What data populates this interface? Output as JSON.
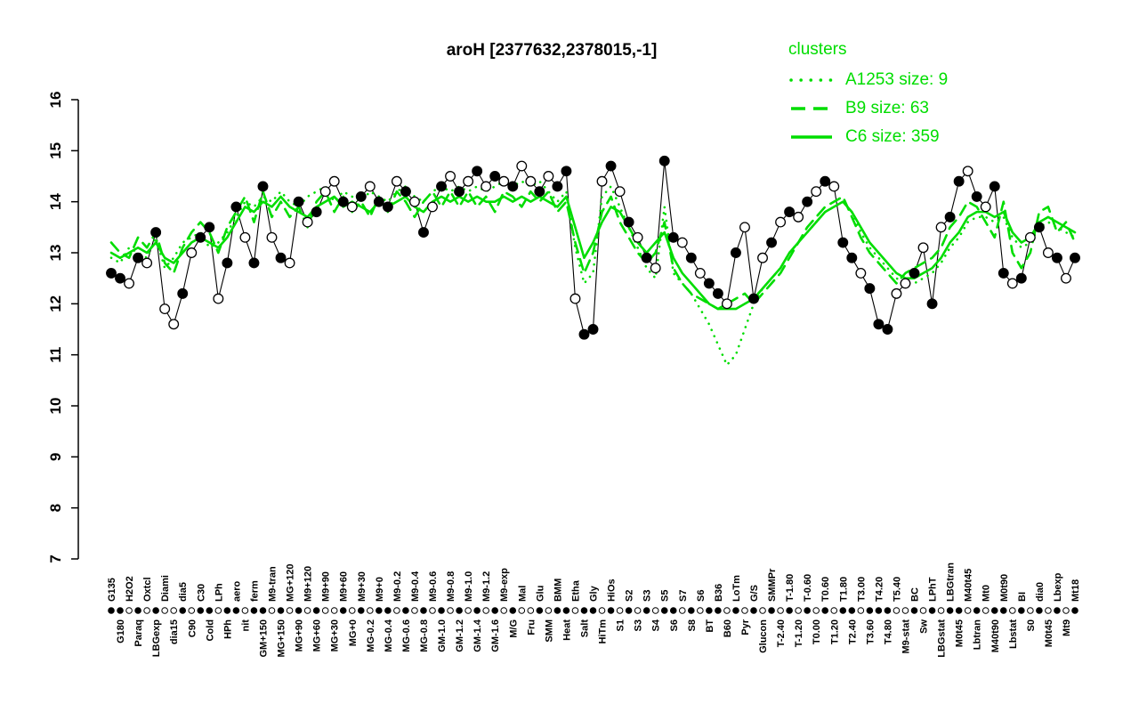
{
  "chart_data": {
    "type": "line",
    "title": "aroH [2377632,2378015,-1]",
    "legend_title": "clusters",
    "legend_position": "top-right",
    "grid": false,
    "cluster_color": "#00dd00",
    "point_color": "#000000",
    "open_point_fill": "#ffffff",
    "ylim": [
      7,
      16
    ],
    "yticks": [
      7,
      8,
      9,
      10,
      11,
      12,
      13,
      14,
      15,
      16
    ],
    "categories": [
      "G135",
      "G180",
      "H2O2",
      "Paraq",
      "Oxtcl",
      "LBGexp",
      "Diami",
      "dia15",
      "dia5",
      "C90",
      "C30",
      "Cold",
      "LPh",
      "HPh",
      "aero",
      "nit",
      "ferm",
      "GM+150",
      "M9-tran",
      "MG+150",
      "MG+120",
      "MG+90",
      "M9+120",
      "MG+60",
      "M9+90",
      "MG+30",
      "M9+60",
      "MG+0",
      "M9+30",
      "MG-0.2",
      "M9+0",
      "MG-0.4",
      "M9-0.2",
      "MG-0.6",
      "M9-0.4",
      "MG-0.8",
      "M9-0.6",
      "GM-1.0",
      "M9-0.8",
      "GM-1.2",
      "M9-1.0",
      "GM-1.4",
      "M9-1.2",
      "GM-1.6",
      "M9-exp",
      "M/G",
      "Mal",
      "Fru",
      "Glu",
      "SMM",
      "BMM",
      "Heat",
      "Etha",
      "Salt",
      "Gly",
      "HiTm",
      "HiOs",
      "S1",
      "S2",
      "S3",
      "S3",
      "S4",
      "S5",
      "S6",
      "S7",
      "S8",
      "S6",
      "BT",
      "B36",
      "B60",
      "LoTm",
      "Pyr",
      "G/S",
      "Glucon",
      "SMMPr",
      "T-2.40",
      "T-1.80",
      "T-1.20",
      "T-0.60",
      "T0.00",
      "T0.60",
      "T1.20",
      "T1.80",
      "T2.40",
      "T3.00",
      "T3.60",
      "T4.20",
      "T4.80",
      "T5.40",
      "M9-stat",
      "BC",
      "Sw",
      "LPhT",
      "LBGstat",
      "LBGtran",
      "M0t45",
      "M40t45",
      "Lbtran",
      "Mt0",
      "M40t90",
      "M0t90",
      "Lbstat",
      "BI",
      "S0",
      "dia0",
      "M0t45",
      "Lbexp",
      "Mt9",
      "Mt18"
    ],
    "gene_profile": {
      "values": [
        12.6,
        12.5,
        12.4,
        12.9,
        12.8,
        13.4,
        11.9,
        11.6,
        12.2,
        13.0,
        13.3,
        13.5,
        12.1,
        12.8,
        13.9,
        13.3,
        12.8,
        14.3,
        13.3,
        12.9,
        12.8,
        14.0,
        13.6,
        13.8,
        14.2,
        14.4,
        14.0,
        13.9,
        14.1,
        14.3,
        14.0,
        13.9,
        14.4,
        14.2,
        14.0,
        13.4,
        13.9,
        14.3,
        14.5,
        14.2,
        14.4,
        14.6,
        14.3,
        14.5,
        14.4,
        14.3,
        14.7,
        14.4,
        14.2,
        14.5,
        14.3,
        14.6,
        12.1,
        11.4,
        11.5,
        14.4,
        14.7,
        14.2,
        13.6,
        13.3,
        12.9,
        12.7,
        14.8,
        13.3,
        13.2,
        12.9,
        12.6,
        12.4,
        12.2,
        12.0,
        13.0,
        13.5,
        12.1,
        12.9,
        13.2,
        13.6,
        13.8,
        13.7,
        14.0,
        14.2,
        14.4,
        14.3,
        13.2,
        12.9,
        12.6,
        12.3,
        11.6,
        11.5,
        12.2,
        12.4,
        12.6,
        13.1,
        12.0,
        13.5,
        13.7,
        14.4,
        14.6,
        14.1,
        13.9,
        14.3,
        12.6,
        12.4,
        12.5,
        13.3,
        13.5,
        13.0,
        12.9,
        12.5,
        12.9
      ],
      "filled": [
        1,
        1,
        0,
        1,
        0,
        1,
        0,
        0,
        1,
        0,
        1,
        1,
        0,
        1,
        1,
        0,
        1,
        1,
        0,
        1,
        0,
        1,
        0,
        1,
        0,
        0,
        1,
        0,
        1,
        0,
        1,
        1,
        0,
        1,
        0,
        1,
        0,
        1,
        0,
        1,
        0,
        1,
        0,
        1,
        0,
        1,
        0,
        0,
        1,
        0,
        1,
        1,
        0,
        1,
        1,
        0,
        1,
        0,
        1,
        0,
        1,
        0,
        1,
        1,
        0,
        1,
        0,
        1,
        1,
        0,
        1,
        0,
        1,
        0,
        1,
        0,
        1,
        0,
        1,
        0,
        1,
        0,
        1,
        1,
        0,
        1,
        1,
        1,
        0,
        0,
        1,
        0,
        1,
        0,
        1,
        1,
        0,
        1,
        0,
        1,
        1,
        0,
        1,
        0,
        1,
        0,
        1,
        0,
        1
      ]
    },
    "series": [
      {
        "name": "A1253",
        "size": 9,
        "style": "dotted",
        "legend_label": "A1253 size: 9",
        "values": [
          12.9,
          12.8,
          13.1,
          13.0,
          12.9,
          13.3,
          12.7,
          12.9,
          13.2,
          13.3,
          13.4,
          13.1,
          13.2,
          13.4,
          13.7,
          14.0,
          13.9,
          14.1,
          14.0,
          14.2,
          14.0,
          13.9,
          14.1,
          14.2,
          14.3,
          14.0,
          14.2,
          14.1,
          14.0,
          14.2,
          14.1,
          14.0,
          14.2,
          14.3,
          14.1,
          14.0,
          14.2,
          14.3,
          14.2,
          14.3,
          14.2,
          14.3,
          14.2,
          14.3,
          14.4,
          14.3,
          14.4,
          14.3,
          14.4,
          14.2,
          14.0,
          14.2,
          13.1,
          12.4,
          12.6,
          14.1,
          14.3,
          13.9,
          13.5,
          13.1,
          12.7,
          12.5,
          13.9,
          12.6,
          12.4,
          12.2,
          11.9,
          11.6,
          11.2,
          10.8,
          11.0,
          11.5,
          12.0,
          12.3,
          12.5,
          12.7,
          13.0,
          13.2,
          13.4,
          13.6,
          13.8,
          13.9,
          14.0,
          13.8,
          13.4,
          13.1,
          12.9,
          12.7,
          12.5,
          12.4,
          12.4,
          12.5,
          12.6,
          12.8,
          13.1,
          13.3,
          13.6,
          13.7,
          13.7,
          13.6,
          13.7,
          13.3,
          13.1,
          13.2,
          13.5,
          13.6,
          13.5,
          13.4,
          13.3
        ]
      },
      {
        "name": "B9",
        "size": 63,
        "style": "dashed",
        "legend_label": "B9 size: 63",
        "values": [
          13.2,
          13.0,
          12.9,
          13.3,
          13.1,
          13.4,
          12.8,
          12.6,
          13.1,
          13.4,
          13.6,
          13.4,
          13.0,
          13.5,
          13.8,
          14.1,
          13.6,
          14.2,
          13.7,
          14.0,
          13.7,
          13.9,
          13.5,
          14.0,
          14.2,
          13.8,
          14.1,
          13.8,
          14.0,
          13.7,
          14.1,
          13.8,
          14.2,
          14.0,
          13.7,
          14.0,
          14.2,
          13.9,
          14.2,
          13.9,
          14.2,
          13.9,
          14.1,
          13.8,
          14.2,
          14.1,
          13.9,
          14.2,
          14.0,
          14.2,
          13.8,
          14.0,
          13.2,
          12.6,
          13.0,
          13.8,
          14.1,
          13.6,
          13.3,
          13.0,
          12.8,
          13.0,
          13.6,
          12.7,
          12.4,
          12.2,
          12.1,
          12.0,
          11.9,
          12.0,
          12.1,
          12.2,
          12.0,
          12.2,
          12.4,
          12.6,
          12.9,
          13.2,
          13.5,
          13.7,
          13.9,
          14.0,
          14.1,
          13.7,
          13.3,
          13.0,
          12.8,
          12.6,
          12.4,
          12.6,
          12.7,
          12.8,
          12.9,
          13.1,
          13.5,
          13.7,
          14.0,
          13.9,
          13.6,
          13.3,
          14.0,
          13.0,
          12.7,
          13.0,
          13.8,
          13.9,
          13.4,
          13.6,
          13.2
        ]
      },
      {
        "name": "C6",
        "size": 359,
        "style": "solid",
        "legend_label": "C6 size: 359",
        "values": [
          13.0,
          12.9,
          13.0,
          13.1,
          13.0,
          13.2,
          12.9,
          12.8,
          13.0,
          13.2,
          13.3,
          13.2,
          13.1,
          13.3,
          13.6,
          13.9,
          13.8,
          14.0,
          13.9,
          14.1,
          13.9,
          13.8,
          13.7,
          13.9,
          14.0,
          14.1,
          13.9,
          14.0,
          13.9,
          13.8,
          14.0,
          13.9,
          14.0,
          14.1,
          13.9,
          13.8,
          14.0,
          14.1,
          14.0,
          14.1,
          14.0,
          14.1,
          14.0,
          14.0,
          14.1,
          14.0,
          14.1,
          14.0,
          14.1,
          14.0,
          13.9,
          14.1,
          13.5,
          12.9,
          13.2,
          13.6,
          13.9,
          13.8,
          13.5,
          13.2,
          13.0,
          13.2,
          13.4,
          12.9,
          12.6,
          12.4,
          12.2,
          12.0,
          11.9,
          11.9,
          11.9,
          12.0,
          12.1,
          12.3,
          12.5,
          12.7,
          13.0,
          13.2,
          13.4,
          13.6,
          13.8,
          13.9,
          14.0,
          13.8,
          13.5,
          13.2,
          13.0,
          12.8,
          12.6,
          12.5,
          12.5,
          12.6,
          12.7,
          12.9,
          13.2,
          13.4,
          13.7,
          13.8,
          13.8,
          13.7,
          13.8,
          13.4,
          13.2,
          13.3,
          13.6,
          13.7,
          13.6,
          13.5,
          13.4
        ]
      }
    ]
  }
}
